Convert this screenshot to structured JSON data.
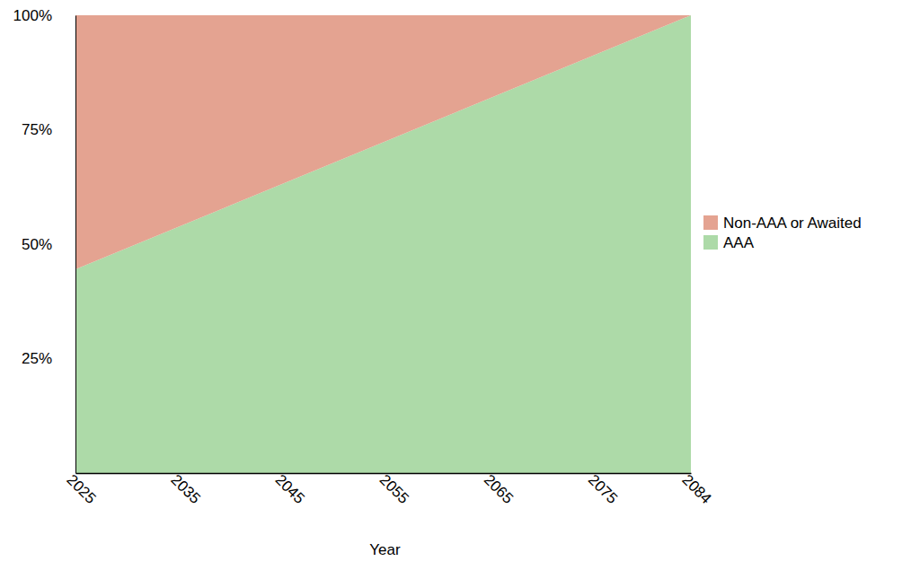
{
  "chart_data": {
    "type": "area",
    "stacked": true,
    "legend": "right",
    "x_label": "Year",
    "x": [
      2025,
      2084
    ],
    "xlim": [
      2025,
      2084
    ],
    "xticks": [
      2025,
      2035,
      2045,
      2055,
      2065,
      2075,
      2084
    ],
    "ylim": [
      0,
      100
    ],
    "yticks": [
      {
        "value": 25,
        "label": "25%"
      },
      {
        "value": 50,
        "label": "50%"
      },
      {
        "value": 75,
        "label": "75%"
      },
      {
        "value": 100,
        "label": "100%"
      }
    ],
    "series": [
      {
        "name": "AAA",
        "color": "#addaa8",
        "values": [
          44.5,
          100
        ]
      },
      {
        "name": "Non-AAA or Awaited",
        "color": "#e4a391",
        "values": [
          55.5,
          0
        ]
      }
    ]
  }
}
